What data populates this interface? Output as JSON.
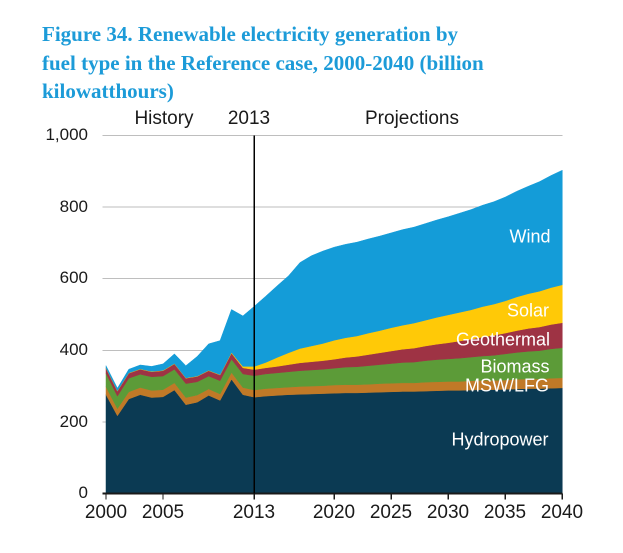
{
  "figure": {
    "title_lines": [
      "Figure 34. Renewable electricity generation by",
      "fuel type in the Reference case, 2000-2040 (billion",
      "kilowatthours)"
    ],
    "title_color": "#1C9BD8"
  },
  "chart_header": {
    "history": "History",
    "boundary_year": "2013",
    "projections": "Projections"
  },
  "chart_data": {
    "type": "area",
    "stacked": true,
    "title": "Figure 34. Renewable electricity generation by fuel type in the Reference case, 2000-2040 (billion kilowatthours)",
    "units": "billion kilowatthours",
    "ylim": [
      0,
      1000
    ],
    "grid": true,
    "divider_year": 2013,
    "x": [
      2000,
      2001,
      2002,
      2003,
      2004,
      2005,
      2006,
      2007,
      2008,
      2009,
      2010,
      2011,
      2012,
      2013,
      2014,
      2015,
      2016,
      2017,
      2018,
      2019,
      2020,
      2021,
      2022,
      2023,
      2024,
      2025,
      2026,
      2027,
      2028,
      2029,
      2030,
      2031,
      2032,
      2033,
      2034,
      2035,
      2036,
      2037,
      2038,
      2039,
      2040
    ],
    "x_ticks": [
      2000,
      2005,
      2013,
      2020,
      2025,
      2030,
      2035,
      2040
    ],
    "x_tick_labels": [
      "2000",
      "2005",
      "2013",
      "2020",
      "2025",
      "2030",
      "2035",
      "2040"
    ],
    "y_ticks": [
      0,
      200,
      400,
      600,
      800,
      1000
    ],
    "y_tick_labels": [
      "0",
      "200",
      "400",
      "600",
      "800",
      "1,000"
    ],
    "series": [
      {
        "name": "Hydropower",
        "color": "#0B3A53",
        "values": [
          276,
          217,
          264,
          276,
          268,
          270,
          289,
          248,
          255,
          274,
          260,
          319,
          276,
          269,
          272,
          274,
          276,
          277,
          278,
          279,
          280,
          281,
          281,
          282,
          283,
          284,
          285,
          285,
          286,
          287,
          288,
          288,
          289,
          290,
          290,
          291,
          292,
          293,
          293,
          294,
          295
        ]
      },
      {
        "name": "MSW/LFG",
        "color": "#C07927",
        "values": [
          22,
          20,
          20,
          20,
          20,
          20,
          20,
          20,
          20,
          18,
          18,
          19,
          20,
          20,
          21,
          21,
          21,
          22,
          22,
          22,
          23,
          23,
          23,
          23,
          24,
          24,
          24,
          24,
          25,
          25,
          25,
          25,
          26,
          26,
          26,
          26,
          27,
          27,
          27,
          28,
          28
        ]
      },
      {
        "name": "Biomass",
        "color": "#5C9B38",
        "values": [
          38,
          35,
          38,
          37,
          38,
          38,
          38,
          39,
          37,
          36,
          37,
          37,
          38,
          40,
          41,
          42,
          43,
          44,
          45,
          46,
          47,
          49,
          50,
          52,
          53,
          55,
          57,
          58,
          60,
          62,
          63,
          65,
          66,
          68,
          70,
          73,
          75,
          77,
          79,
          82,
          84
        ]
      },
      {
        "name": "Geothermal",
        "color": "#9E3344",
        "values": [
          14,
          14,
          14,
          14,
          14,
          15,
          15,
          15,
          15,
          15,
          16,
          17,
          17,
          17,
          17,
          18,
          20,
          22,
          23,
          24,
          25,
          27,
          29,
          31,
          33,
          35,
          37,
          39,
          41,
          43,
          45,
          48,
          50,
          53,
          56,
          58,
          61,
          64,
          66,
          68,
          70
        ]
      },
      {
        "name": "Solar",
        "color": "#FFC907",
        "values": [
          1,
          1,
          1,
          1,
          1,
          1,
          1,
          1,
          1,
          1,
          1,
          2,
          4,
          9,
          15,
          25,
          33,
          40,
          44,
          48,
          53,
          55,
          57,
          60,
          62,
          65,
          67,
          70,
          72,
          75,
          78,
          80,
          82,
          85,
          87,
          90,
          94,
          97,
          100,
          103,
          106
        ]
      },
      {
        "name": "Wind",
        "color": "#149CD8",
        "values": [
          6,
          7,
          10,
          11,
          14,
          18,
          27,
          34,
          55,
          74,
          95,
          120,
          141,
          168,
          185,
          200,
          215,
          240,
          252,
          258,
          260,
          261,
          262,
          263,
          264,
          265,
          267,
          268,
          270,
          272,
          274,
          277,
          280,
          283,
          286,
          290,
          295,
          300,
          306,
          313,
          320
        ]
      }
    ],
    "colors": {
      "gridline": "#BEBEBE",
      "axis": "#1a1a1a",
      "divider_line": "#000000",
      "area_label_text": "#ffffff"
    }
  }
}
